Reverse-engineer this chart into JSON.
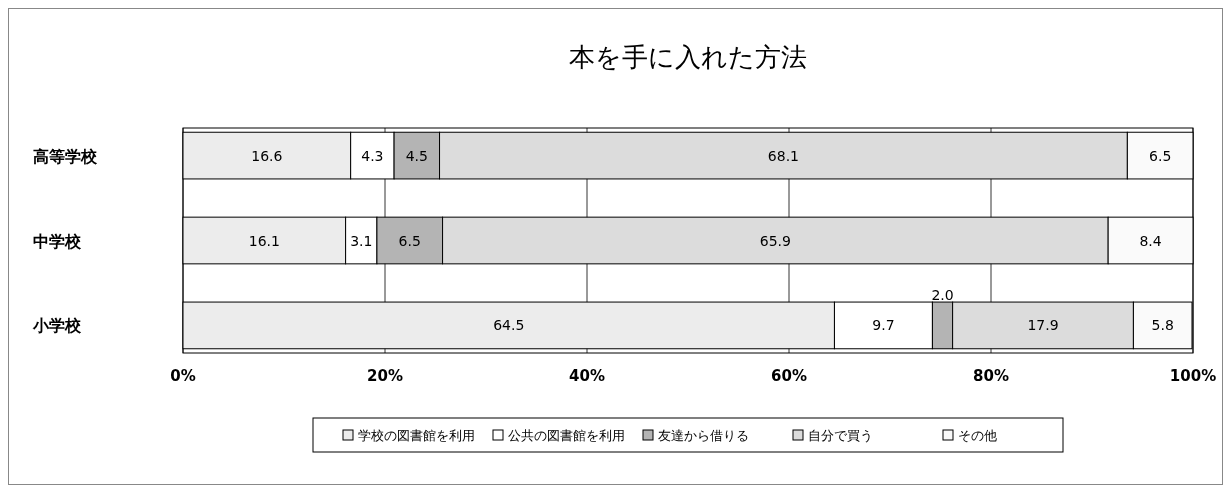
{
  "chart_data": {
    "type": "bar",
    "orientation": "horizontal",
    "stacked": true,
    "title": "本を手に入れた方法",
    "categories": [
      "高等学校",
      "中学校",
      "小学校"
    ],
    "series": [
      {
        "name": "学校の図書館を利用",
        "color": "#ececec",
        "values": [
          16.6,
          16.1,
          64.5
        ],
        "value_labels": [
          "16.6",
          "16.1",
          "64.5"
        ]
      },
      {
        "name": "公共の図書館を利用",
        "color": "#ffffff",
        "values": [
          4.3,
          3.1,
          9.7
        ],
        "value_labels": [
          "4.3",
          "3.1",
          "9.7"
        ]
      },
      {
        "name": "友達から借りる",
        "color": "#b4b4b4",
        "values": [
          4.5,
          6.5,
          2.0
        ],
        "value_labels": [
          "4.5",
          "6.5",
          "2.0"
        ]
      },
      {
        "name": "自分で買う",
        "color": "#dcdcdc",
        "values": [
          68.1,
          65.9,
          17.9
        ],
        "value_labels": [
          "68.1",
          "65.9",
          "17.9"
        ]
      },
      {
        "name": "その他",
        "color": "#fafafa",
        "values": [
          6.5,
          8.4,
          5.8
        ],
        "value_labels": [
          "6.5",
          "8.4",
          "5.8"
        ]
      }
    ],
    "xlim": [
      0,
      100
    ],
    "xticks": [
      {
        "value": 0,
        "label": "0%"
      },
      {
        "value": 20,
        "label": "20%"
      },
      {
        "value": 40,
        "label": "40%"
      },
      {
        "value": 60,
        "label": "60%"
      },
      {
        "value": 80,
        "label": "80%"
      },
      {
        "value": 100,
        "label": "100%"
      }
    ],
    "grid": "x",
    "legend": "bottom"
  }
}
